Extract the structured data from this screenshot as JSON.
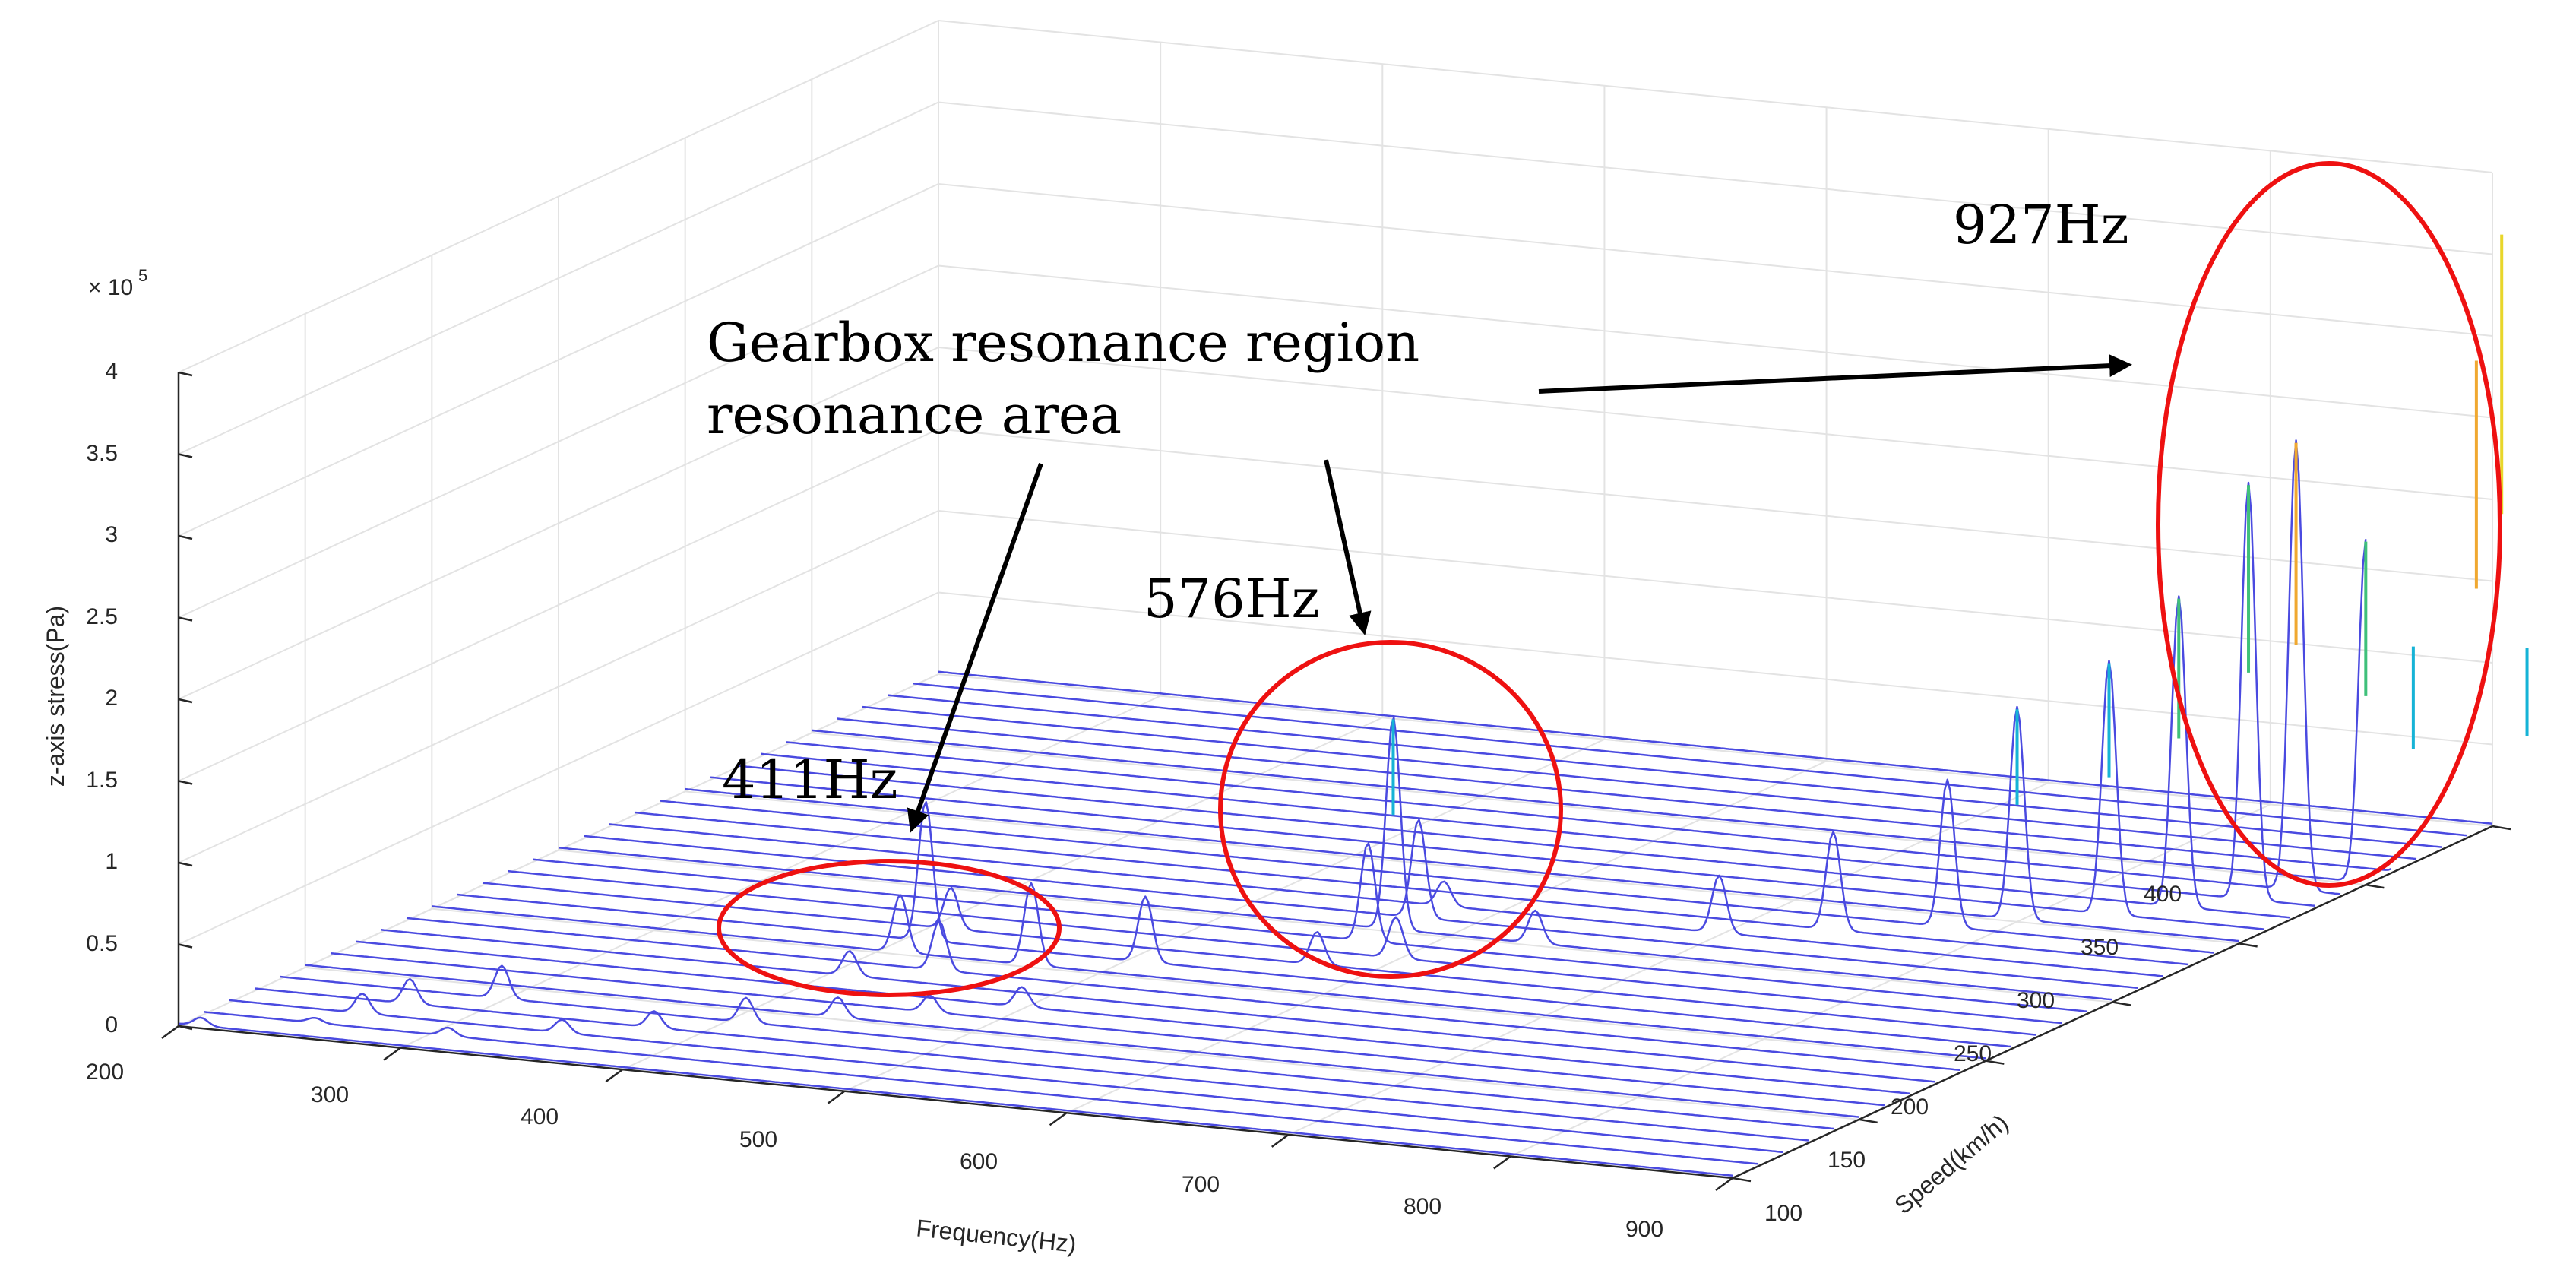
{
  "chart_data": {
    "type": "waterfall-3d",
    "title": "",
    "xlabel": "Frequency(Hz)",
    "ylabel": "Speed(km/h)",
    "zlabel": "z-axis stress(Pa)",
    "z_exponent_label": "× 10",
    "z_exponent_power": "5",
    "xlim": [
      200,
      900
    ],
    "ylim": [
      100,
      400
    ],
    "zlim": [
      0,
      4
    ],
    "x_ticks": [
      "200",
      "300",
      "400",
      "500",
      "600",
      "700",
      "800",
      "900"
    ],
    "y_ticks": [
      "100",
      "150",
      "200",
      "250",
      "300",
      "350",
      "400"
    ],
    "z_ticks": [
      "0",
      "0.5",
      "1",
      "1.5",
      "2",
      "2.5",
      "3",
      "3.5",
      "4"
    ],
    "grid": true,
    "speed_start": 100,
    "speed_step": 10,
    "speed_count": 31,
    "peaks": [
      {
        "speed": 100,
        "freq": 210,
        "amp": 0.05
      },
      {
        "speed": 110,
        "freq": 250,
        "amp": 0.03
      },
      {
        "speed": 110,
        "freq": 310,
        "amp": 0.05
      },
      {
        "speed": 120,
        "freq": 260,
        "amp": 0.12
      },
      {
        "speed": 120,
        "freq": 350,
        "amp": 0.08
      },
      {
        "speed": 130,
        "freq": 270,
        "amp": 0.15
      },
      {
        "speed": 130,
        "freq": 380,
        "amp": 0.1
      },
      {
        "speed": 140,
        "freq": 300,
        "amp": 0.2
      },
      {
        "speed": 140,
        "freq": 410,
        "amp": 0.15
      },
      {
        "speed": 150,
        "freq": 440,
        "amp": 0.12
      },
      {
        "speed": 160,
        "freq": 470,
        "amp": 0.1
      },
      {
        "speed": 170,
        "freq": 500,
        "amp": 0.12
      },
      {
        "speed": 180,
        "freq": 411,
        "amp": 0.15
      },
      {
        "speed": 190,
        "freq": 440,
        "amp": 0.3
      },
      {
        "speed": 200,
        "freq": 411,
        "amp": 0.35
      },
      {
        "speed": 200,
        "freq": 470,
        "amp": 0.5
      },
      {
        "speed": 210,
        "freq": 411,
        "amp": 0.85
      },
      {
        "speed": 210,
        "freq": 510,
        "amp": 0.4
      },
      {
        "speed": 220,
        "freq": 411,
        "amp": 0.25
      },
      {
        "speed": 220,
        "freq": 576,
        "amp": 0.2
      },
      {
        "speed": 230,
        "freq": 600,
        "amp": 0.25
      },
      {
        "speed": 240,
        "freq": 576,
        "amp": 0.6
      },
      {
        "speed": 250,
        "freq": 576,
        "amp": 1.3
      },
      {
        "speed": 250,
        "freq": 640,
        "amp": 0.2
      },
      {
        "speed": 260,
        "freq": 576,
        "amp": 0.6
      },
      {
        "speed": 270,
        "freq": 576,
        "amp": 0.15
      },
      {
        "speed": 270,
        "freq": 700,
        "amp": 0.35
      },
      {
        "speed": 280,
        "freq": 740,
        "amp": 0.6
      },
      {
        "speed": 290,
        "freq": 780,
        "amp": 0.9
      },
      {
        "speed": 300,
        "freq": 800,
        "amp": 1.3
      },
      {
        "speed": 310,
        "freq": 830,
        "amp": 1.55
      },
      {
        "speed": 320,
        "freq": 850,
        "amp": 1.9
      },
      {
        "speed": 330,
        "freq": 870,
        "amp": 2.55
      },
      {
        "speed": 340,
        "freq": 880,
        "amp": 2.75
      },
      {
        "speed": 350,
        "freq": 900,
        "amp": 2.1
      },
      {
        "speed": 360,
        "freq": 910,
        "amp": 1.4
      },
      {
        "speed": 370,
        "freq": 927,
        "amp": 3.1
      },
      {
        "speed": 380,
        "freq": 927,
        "amp": 3.8
      },
      {
        "speed": 390,
        "freq": 927,
        "amp": 1.2
      },
      {
        "speed": 400,
        "freq": 927,
        "amp": 0.6
      }
    ]
  },
  "annotations": {
    "region_line1": "Gearbox resonance region",
    "region_line2": "resonance area",
    "f411": "411Hz",
    "f576": "576Hz",
    "f927": "927Hz"
  }
}
